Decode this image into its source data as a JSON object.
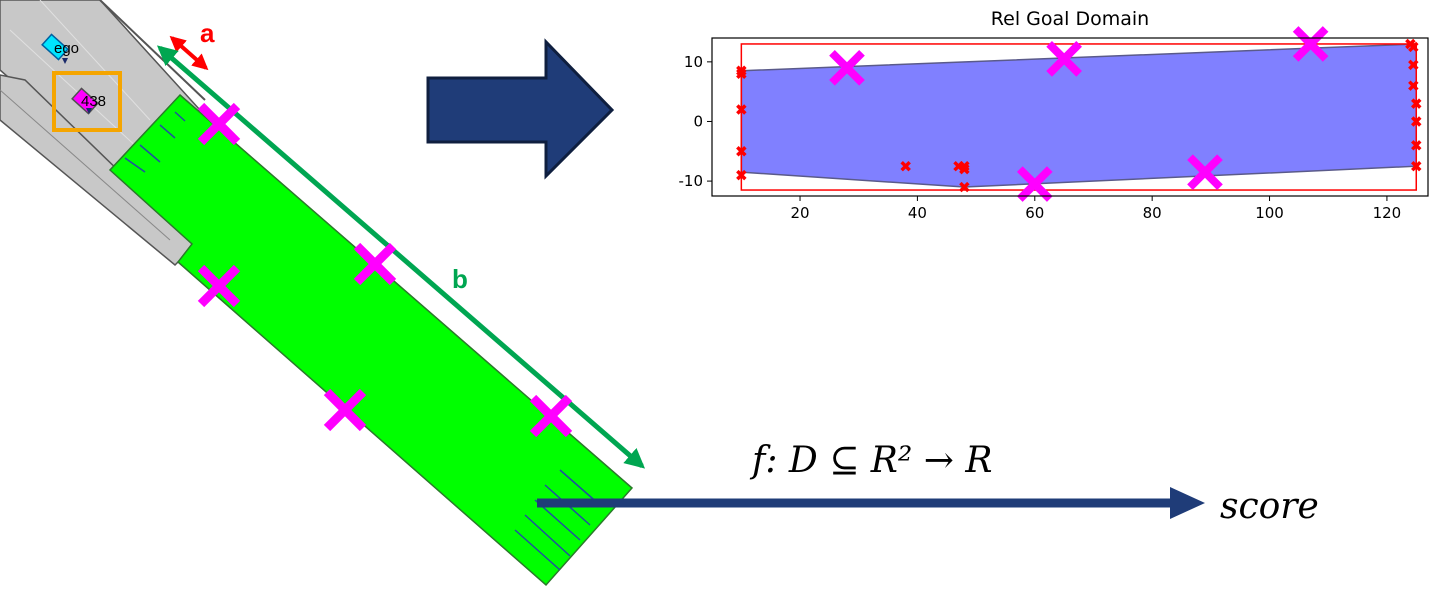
{
  "scene": {
    "ego_label": "ego",
    "vehicle_label": "438",
    "label_a": "a",
    "label_b": "b",
    "colors": {
      "road": "#c8c8c8",
      "goal_region": "#00ff00",
      "sample_marker": "#ff00ff",
      "ego_vehicle": "#00e5ff",
      "target_box": "#f5a500",
      "arrow_a": "#ff0000",
      "arrow_b": "#00a651",
      "big_arrow": "#1f3c78",
      "score_arrow": "#1f3c78"
    }
  },
  "function_label": {
    "mapping": "f: D ⊆ R² → R",
    "output": "score"
  },
  "chart_data": {
    "type": "scatter",
    "title": "Rel Goal Domain",
    "xlabel": "",
    "ylabel": "",
    "xlim": [
      5,
      127
    ],
    "ylim": [
      -12.5,
      14
    ],
    "xticks": [
      20,
      40,
      60,
      80,
      100,
      120
    ],
    "yticks": [
      -10,
      0,
      10
    ],
    "grid": false,
    "bounding_box": {
      "x": [
        10,
        125
      ],
      "y": [
        -11.5,
        13
      ]
    },
    "domain_polygon": [
      [
        10,
        8.5
      ],
      [
        125,
        13
      ],
      [
        125,
        -7.5
      ],
      [
        48,
        -11
      ],
      [
        10,
        -8.5
      ]
    ],
    "boundary_points": {
      "x": [
        10,
        10,
        10,
        10,
        10,
        38,
        47,
        48,
        48,
        48,
        124,
        124.5,
        124.5,
        125,
        125,
        125,
        125,
        124.5
      ],
      "y": [
        8.5,
        8,
        2,
        -5,
        -9,
        -7.5,
        -7.5,
        -7.5,
        -8,
        -11,
        13,
        9.5,
        6,
        3,
        0,
        -4,
        -7.5,
        12.5
      ]
    },
    "samples": {
      "x": [
        28,
        65,
        107,
        60,
        89
      ],
      "y": [
        9,
        10.5,
        13,
        -10.5,
        -8.5
      ]
    },
    "colors": {
      "domain_fill": "#8080ff",
      "domain_edge": "#5a5a8a",
      "bounding_box": "#ff0000",
      "boundary_points": "#ff0000",
      "samples": "#ff00ff"
    }
  }
}
